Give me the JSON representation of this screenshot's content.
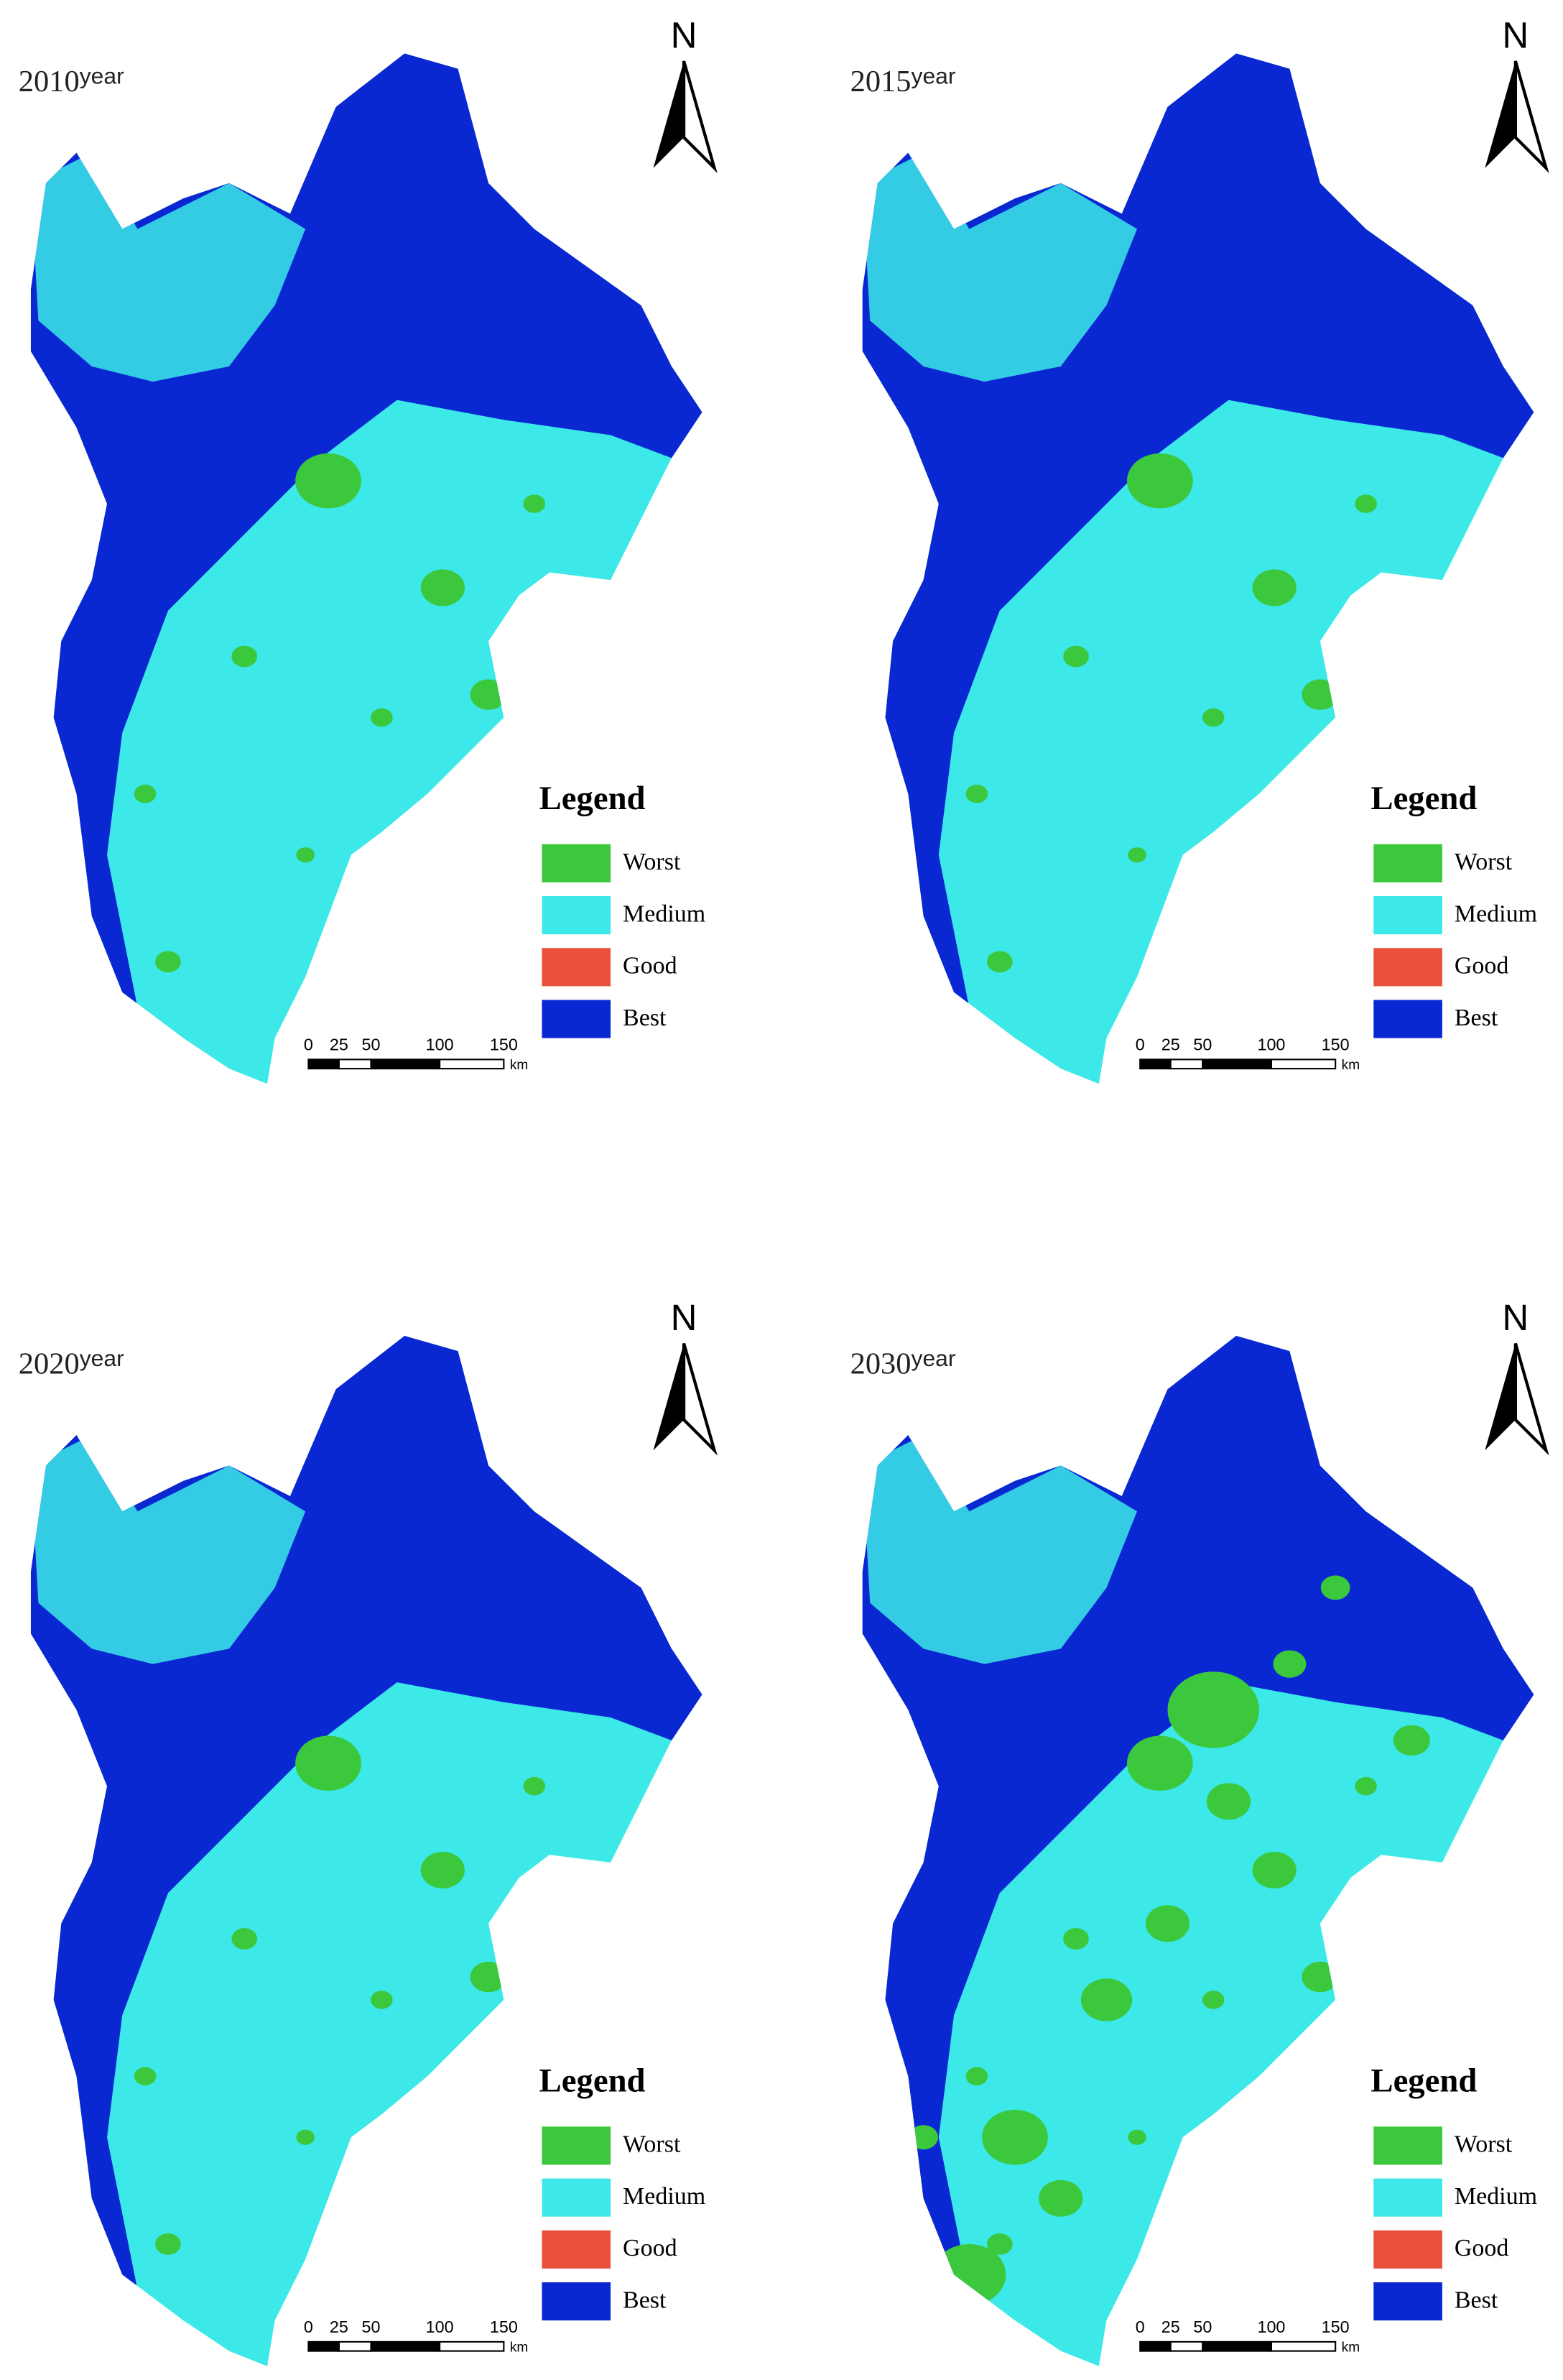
{
  "panels": [
    {
      "year": "2010",
      "suffix": "year",
      "north": "N",
      "legend": {
        "title": "Legend",
        "items": [
          {
            "label": "Worst",
            "color": "#3cc83c"
          },
          {
            "label": "Medium",
            "color": "#3ce8e8"
          },
          {
            "label": "Good",
            "color": "#e8503c"
          },
          {
            "label": "Best",
            "color": "#0a28d2"
          }
        ]
      },
      "scale": {
        "ticks": [
          "0",
          "25",
          "50",
          "100",
          "150"
        ],
        "unit": "km"
      }
    },
    {
      "year": "2015",
      "suffix": "year",
      "north": "N",
      "legend": {
        "title": "Legend",
        "items": [
          {
            "label": "Worst",
            "color": "#3cc83c"
          },
          {
            "label": "Medium",
            "color": "#3ce8e8"
          },
          {
            "label": "Good",
            "color": "#e8503c"
          },
          {
            "label": "Best",
            "color": "#0a28d2"
          }
        ]
      },
      "scale": {
        "ticks": [
          "0",
          "25",
          "50",
          "100",
          "150"
        ],
        "unit": "km"
      }
    },
    {
      "year": "2020",
      "suffix": "year",
      "north": "N",
      "legend": {
        "title": "Legend",
        "items": [
          {
            "label": "Worst",
            "color": "#3cc83c"
          },
          {
            "label": "Medium",
            "color": "#3ce8e8"
          },
          {
            "label": "Good",
            "color": "#e8503c"
          },
          {
            "label": "Best",
            "color": "#0a28d2"
          }
        ]
      },
      "scale": {
        "ticks": [
          "0",
          "25",
          "50",
          "100",
          "150"
        ],
        "unit": "km"
      }
    },
    {
      "year": "2030",
      "suffix": "year",
      "north": "N",
      "legend": {
        "title": "Legend",
        "items": [
          {
            "label": "Worst",
            "color": "#3cc83c"
          },
          {
            "label": "Medium",
            "color": "#3ce8e8"
          },
          {
            "label": "Good",
            "color": "#e8503c"
          },
          {
            "label": "Best",
            "color": "#0a28d2"
          }
        ]
      },
      "scale": {
        "ticks": [
          "0",
          "25",
          "50",
          "100",
          "150"
        ],
        "unit": "km"
      }
    }
  ]
}
